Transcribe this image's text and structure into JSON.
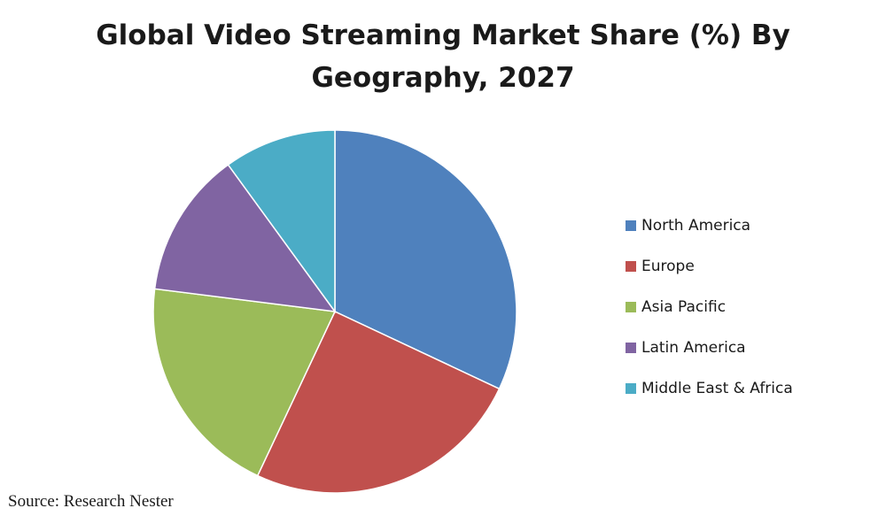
{
  "chart_data": {
    "type": "pie",
    "title": "Global Video Streaming Market Share (%) By Geography, 2027",
    "title_lines": [
      "Global Video Streaming Market Share (%) By",
      "Geography, 2027"
    ],
    "start_angle_deg": 0,
    "direction": "clockwise",
    "legend_position": "right",
    "slices": [
      {
        "label": "North America",
        "value": 32,
        "color": "#4f81bd"
      },
      {
        "label": "Europe",
        "value": 25,
        "color": "#c0504d"
      },
      {
        "label": "Asia Pacific",
        "value": 20,
        "color": "#9bbb59"
      },
      {
        "label": "Latin America",
        "value": 13,
        "color": "#8064a2"
      },
      {
        "label": "Middle East & Africa",
        "value": 10,
        "color": "#4bacc6"
      }
    ]
  },
  "source": "Source: Research Nester"
}
